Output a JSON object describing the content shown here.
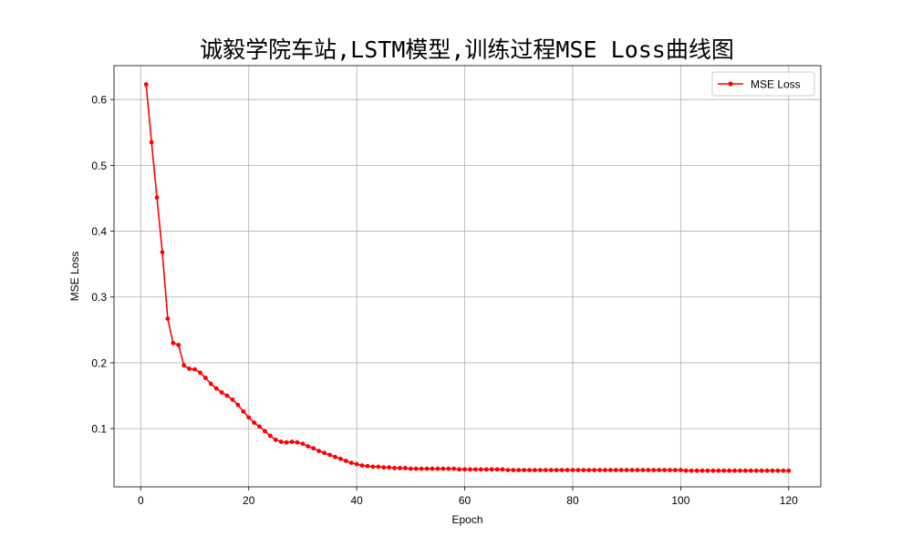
{
  "chart_data": {
    "type": "line",
    "title": "诚毅学院车站,LSTM模型,训练过程MSE Loss曲线图",
    "xlabel": "Epoch",
    "ylabel": "MSE Loss",
    "xlim": [
      -4.95,
      125.95
    ],
    "ylim": [
      0.0115,
      0.6515
    ],
    "xticks": [
      0,
      20,
      40,
      60,
      80,
      100,
      120
    ],
    "yticks": [
      0.1,
      0.2,
      0.3,
      0.4,
      0.5,
      0.6
    ],
    "xtick_labels": [
      "0",
      "20",
      "40",
      "60",
      "80",
      "100",
      "120"
    ],
    "ytick_labels": [
      "0.1",
      "0.2",
      "0.3",
      "0.4",
      "0.5",
      "0.6"
    ],
    "grid": true,
    "legend_position": "upper right",
    "series": [
      {
        "name": "MSE Loss",
        "color": "#ff0000",
        "marker": "circle",
        "x": [
          1,
          2,
          3,
          4,
          5,
          6,
          7,
          8,
          9,
          10,
          11,
          12,
          13,
          14,
          15,
          16,
          17,
          18,
          19,
          20,
          21,
          22,
          23,
          24,
          25,
          26,
          27,
          28,
          29,
          30,
          31,
          32,
          33,
          34,
          35,
          36,
          37,
          38,
          39,
          40,
          41,
          42,
          43,
          44,
          45,
          46,
          47,
          48,
          49,
          50,
          51,
          52,
          53,
          54,
          55,
          56,
          57,
          58,
          59,
          60,
          61,
          62,
          63,
          64,
          65,
          66,
          67,
          68,
          69,
          70,
          71,
          72,
          73,
          74,
          75,
          76,
          77,
          78,
          79,
          80,
          81,
          82,
          83,
          84,
          85,
          86,
          87,
          88,
          89,
          90,
          91,
          92,
          93,
          94,
          95,
          96,
          97,
          98,
          99,
          100,
          101,
          102,
          103,
          104,
          105,
          106,
          107,
          108,
          109,
          110,
          111,
          112,
          113,
          114,
          115,
          116,
          117,
          118,
          119,
          120
        ],
        "y": [
          0.623,
          0.535,
          0.451,
          0.368,
          0.267,
          0.23,
          0.227,
          0.196,
          0.191,
          0.19,
          0.185,
          0.177,
          0.168,
          0.161,
          0.155,
          0.15,
          0.144,
          0.136,
          0.126,
          0.117,
          0.109,
          0.103,
          0.096,
          0.089,
          0.083,
          0.08,
          0.079,
          0.08,
          0.079,
          0.077,
          0.073,
          0.07,
          0.066,
          0.063,
          0.06,
          0.057,
          0.054,
          0.051,
          0.048,
          0.046,
          0.044,
          0.043,
          0.042,
          0.042,
          0.041,
          0.041,
          0.04,
          0.04,
          0.04,
          0.039,
          0.039,
          0.039,
          0.039,
          0.039,
          0.039,
          0.039,
          0.039,
          0.039,
          0.038,
          0.038,
          0.038,
          0.038,
          0.038,
          0.038,
          0.038,
          0.038,
          0.038,
          0.037,
          0.037,
          0.037,
          0.037,
          0.037,
          0.037,
          0.037,
          0.037,
          0.037,
          0.037,
          0.037,
          0.037,
          0.037,
          0.037,
          0.037,
          0.037,
          0.037,
          0.037,
          0.037,
          0.037,
          0.037,
          0.037,
          0.037,
          0.037,
          0.037,
          0.037,
          0.037,
          0.037,
          0.037,
          0.037,
          0.037,
          0.037,
          0.037,
          0.036,
          0.036,
          0.036,
          0.036,
          0.036,
          0.036,
          0.036,
          0.036,
          0.036,
          0.036,
          0.036,
          0.036,
          0.036,
          0.036,
          0.036,
          0.036,
          0.036,
          0.036,
          0.036,
          0.036
        ]
      }
    ]
  }
}
